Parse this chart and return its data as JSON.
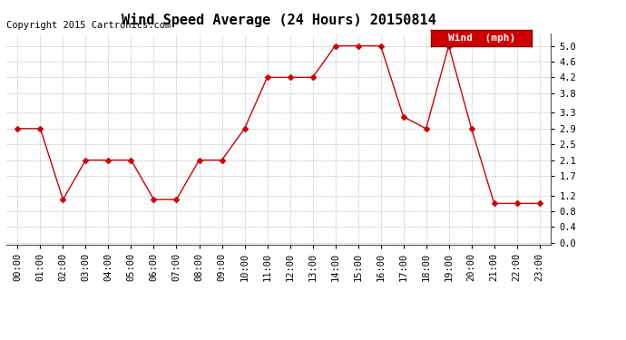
{
  "title": "Wind Speed Average (24 Hours) 20150814",
  "copyright": "Copyright 2015 Cartronics.com",
  "legend_label": "Wind  (mph)",
  "x_labels": [
    "00:00",
    "01:00",
    "02:00",
    "03:00",
    "04:00",
    "05:00",
    "06:00",
    "07:00",
    "08:00",
    "09:00",
    "10:00",
    "11:00",
    "12:00",
    "13:00",
    "14:00",
    "15:00",
    "16:00",
    "17:00",
    "18:00",
    "19:00",
    "20:00",
    "21:00",
    "22:00",
    "23:00"
  ],
  "y_values": [
    2.9,
    2.9,
    1.1,
    2.1,
    2.1,
    2.1,
    1.1,
    1.1,
    2.1,
    2.1,
    2.9,
    4.2,
    4.2,
    4.2,
    5.0,
    5.0,
    5.0,
    3.2,
    2.9,
    5.0,
    2.9,
    1.0,
    1.0,
    1.0
  ],
  "y_ticks": [
    0.0,
    0.4,
    0.8,
    1.2,
    1.7,
    2.1,
    2.5,
    2.9,
    3.3,
    3.8,
    4.2,
    4.6,
    5.0
  ],
  "ylim": [
    -0.05,
    5.3
  ],
  "line_color": "#cc0000",
  "marker": "D",
  "marker_size": 3,
  "bg_color": "#ffffff",
  "grid_color": "#aaaaaa",
  "legend_bg": "#cc0000",
  "legend_text_color": "#ffffff",
  "title_fontsize": 11,
  "copyright_fontsize": 7.5,
  "tick_fontsize": 7.5,
  "legend_fontsize": 8
}
